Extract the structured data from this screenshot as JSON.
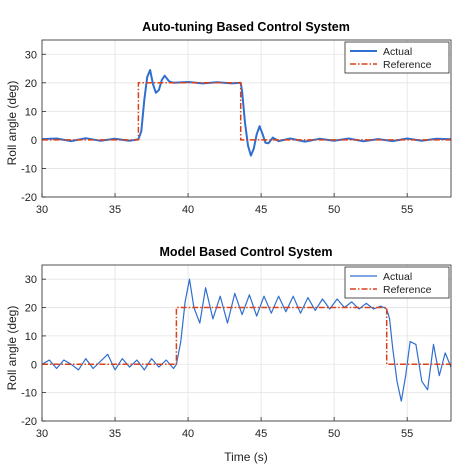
{
  "chart_data": [
    {
      "type": "line",
      "title": "Auto-tuning Based Control System",
      "xlabel": "",
      "ylabel": "Roll angle (deg)",
      "xlim": [
        30,
        58
      ],
      "ylim": [
        -20,
        35
      ],
      "xticks": [
        30,
        35,
        40,
        45,
        50,
        55
      ],
      "yticks": [
        -20,
        -10,
        0,
        10,
        20,
        30
      ],
      "grid": true,
      "legend_position": "top-right",
      "series": [
        {
          "name": "Actual",
          "color": "#2f6fcf",
          "style": "solid-thick",
          "x": [
            30,
            31,
            32,
            33,
            34,
            35,
            36,
            36.6,
            36.8,
            37.0,
            37.2,
            37.4,
            37.6,
            37.8,
            38.0,
            38.2,
            38.4,
            38.7,
            39,
            40,
            41,
            42,
            43,
            43.6,
            43.7,
            43.9,
            44.1,
            44.3,
            44.5,
            44.7,
            44.9,
            45.1,
            45.3,
            45.5,
            45.8,
            46.2,
            47,
            48,
            49,
            50,
            51,
            52,
            53,
            54,
            55,
            56,
            57,
            58
          ],
          "y": [
            0.3,
            0.5,
            -0.4,
            0.6,
            -0.3,
            0.4,
            -0.3,
            0.2,
            3,
            14,
            22,
            24.5,
            19.5,
            16.5,
            17.5,
            21,
            22.5,
            20.5,
            20,
            20.3,
            19.8,
            20.2,
            19.8,
            20,
            17,
            6,
            -2,
            -5.5,
            -3,
            2,
            4.8,
            2,
            -1,
            -1.2,
            0.8,
            -0.4,
            0.5,
            -0.6,
            0.4,
            -0.3,
            0.5,
            -0.5,
            0.3,
            -0.4,
            0.5,
            -0.3,
            0.4,
            0.2
          ]
        },
        {
          "name": "Reference",
          "color": "#d9401b",
          "style": "dash-dot",
          "x": [
            30,
            36.6,
            36.6,
            43.6,
            43.6,
            58
          ],
          "y": [
            0,
            0,
            20,
            20,
            0,
            0
          ]
        }
      ]
    },
    {
      "type": "line",
      "title": "Model Based Control System",
      "xlabel": "Time (s)",
      "ylabel": "Roll angle (deg)",
      "xlim": [
        30,
        58
      ],
      "ylim": [
        -20,
        35
      ],
      "xticks": [
        30,
        35,
        40,
        45,
        50,
        55
      ],
      "yticks": [
        -20,
        -10,
        0,
        10,
        20,
        30
      ],
      "grid": true,
      "legend_position": "top-right",
      "series": [
        {
          "name": "Actual",
          "color": "#2f6fcf",
          "style": "solid-thin",
          "x": [
            30,
            30.5,
            31,
            31.5,
            32,
            32.5,
            33,
            33.5,
            34,
            34.5,
            35,
            35.5,
            36,
            36.5,
            37,
            37.5,
            38,
            38.5,
            39,
            39.2,
            39.5,
            39.8,
            40.1,
            40.4,
            40.8,
            41.2,
            41.7,
            42.2,
            42.7,
            43.2,
            43.7,
            44.2,
            44.7,
            45.2,
            45.7,
            46.2,
            46.7,
            47.2,
            47.7,
            48.2,
            48.7,
            49.2,
            49.7,
            50.2,
            50.7,
            51.2,
            51.7,
            52.2,
            52.7,
            53.2,
            53.6,
            53.8,
            54.0,
            54.3,
            54.6,
            54.9,
            55.2,
            55.6,
            56.0,
            56.4,
            56.8,
            57.2,
            57.6,
            58
          ],
          "y": [
            0,
            1.5,
            -1.5,
            1.5,
            0,
            -2,
            2,
            -1.5,
            1,
            3.5,
            -2,
            2,
            -1,
            1.5,
            -2,
            2,
            -1,
            1.5,
            -1.5,
            0,
            8,
            22,
            30,
            20,
            14.5,
            27,
            16,
            24,
            14.5,
            25,
            17.5,
            24.5,
            17,
            24,
            18,
            24,
            18.5,
            24,
            18,
            23.5,
            19,
            23,
            19.5,
            23,
            20,
            22,
            19.5,
            21.5,
            19.5,
            20.5,
            19.5,
            16,
            6,
            -6,
            -13,
            -4,
            8,
            7,
            -6,
            -9,
            7,
            -4,
            4,
            -1
          ]
        },
        {
          "name": "Reference",
          "color": "#d9401b",
          "style": "dash-dot",
          "x": [
            30,
            39.2,
            39.2,
            53.6,
            53.6,
            58
          ],
          "y": [
            0,
            0,
            20,
            20,
            0,
            0
          ]
        }
      ]
    }
  ]
}
